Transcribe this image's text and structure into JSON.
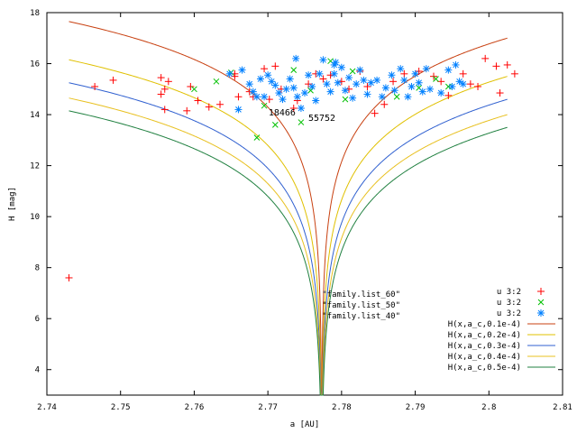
{
  "chart_data": {
    "type": "scatter",
    "xlabel": "a [AU]",
    "ylabel": "H [mag]",
    "xlim": [
      2.74,
      2.81
    ],
    "ylim": [
      3,
      18
    ],
    "xticks": [
      "2.74",
      "2.75",
      "2.76",
      "2.77",
      "2.78",
      "2.79",
      "2.8",
      "2.81"
    ],
    "yticks": [
      "4",
      "6",
      "8",
      "10",
      "12",
      "14",
      "16",
      "18"
    ],
    "grid": false,
    "legend_position": "bottom-right",
    "file_labels": [
      "\"family.list_60\"",
      "\"family.list_50\"",
      "\"family.list_40\""
    ],
    "annotations": [
      {
        "text": "18466",
        "x": 2.7718,
        "y": 14.1
      },
      {
        "text": "55752",
        "x": 2.7772,
        "y": 13.9
      }
    ],
    "series": [
      {
        "name": "u 3:2",
        "marker": "plus",
        "color": "#ff0000",
        "points": [
          [
            2.743,
            7.6
          ],
          [
            2.7465,
            15.1
          ],
          [
            2.749,
            15.35
          ],
          [
            2.7555,
            15.45
          ],
          [
            2.756,
            15.0
          ],
          [
            2.7565,
            15.3
          ],
          [
            2.756,
            14.2
          ],
          [
            2.7555,
            14.8
          ],
          [
            2.759,
            14.15
          ],
          [
            2.7605,
            14.55
          ],
          [
            2.762,
            14.3
          ],
          [
            2.7635,
            14.4
          ],
          [
            2.7655,
            15.5
          ],
          [
            2.766,
            14.7
          ],
          [
            2.7675,
            14.9
          ],
          [
            2.768,
            14.7
          ],
          [
            2.7695,
            15.8
          ],
          [
            2.771,
            15.9
          ],
          [
            2.7702,
            14.6
          ],
          [
            2.7718,
            15.0
          ],
          [
            2.7735,
            14.25
          ],
          [
            2.774,
            14.55
          ],
          [
            2.7755,
            15.2
          ],
          [
            2.7765,
            15.6
          ],
          [
            2.7775,
            15.4
          ],
          [
            2.7785,
            15.55
          ],
          [
            2.78,
            15.3
          ],
          [
            2.781,
            15.0
          ],
          [
            2.7825,
            15.7
          ],
          [
            2.7835,
            15.1
          ],
          [
            2.7845,
            14.05
          ],
          [
            2.7858,
            14.4
          ],
          [
            2.787,
            15.3
          ],
          [
            2.7885,
            15.6
          ],
          [
            2.7905,
            15.7
          ],
          [
            2.7925,
            15.5
          ],
          [
            2.7935,
            15.3
          ],
          [
            2.7945,
            14.75
          ],
          [
            2.7965,
            15.6
          ],
          [
            2.7975,
            15.2
          ],
          [
            2.7985,
            15.1
          ],
          [
            2.7995,
            16.2
          ],
          [
            2.801,
            15.9
          ],
          [
            2.8015,
            14.85
          ],
          [
            2.8025,
            15.95
          ],
          [
            2.8035,
            15.6
          ],
          [
            2.7655,
            15.6
          ],
          [
            2.7595,
            15.1
          ]
        ]
      },
      {
        "name": "u 3:2",
        "marker": "cross",
        "color": "#00c000",
        "points": [
          [
            2.76,
            15.0
          ],
          [
            2.763,
            15.3
          ],
          [
            2.765,
            15.65
          ],
          [
            2.7685,
            13.1
          ],
          [
            2.771,
            13.6
          ],
          [
            2.7735,
            15.75
          ],
          [
            2.7785,
            16.1
          ],
          [
            2.7815,
            15.7
          ],
          [
            2.7875,
            14.7
          ],
          [
            2.7905,
            15.05
          ],
          [
            2.7928,
            15.4
          ],
          [
            2.7945,
            15.1
          ],
          [
            2.7745,
            13.7
          ],
          [
            2.7758,
            14.95
          ],
          [
            2.7805,
            14.6
          ],
          [
            2.7695,
            14.35
          ]
        ]
      },
      {
        "name": "u 3:2",
        "marker": "star",
        "color": "#0080ff",
        "points": [
          [
            2.7648,
            15.6
          ],
          [
            2.766,
            14.2
          ],
          [
            2.7675,
            15.2
          ],
          [
            2.768,
            14.9
          ],
          [
            2.7685,
            14.7
          ],
          [
            2.769,
            15.4
          ],
          [
            2.77,
            15.55
          ],
          [
            2.7695,
            14.7
          ],
          [
            2.7705,
            15.3
          ],
          [
            2.771,
            15.15
          ],
          [
            2.7715,
            14.85
          ],
          [
            2.772,
            14.6
          ],
          [
            2.7725,
            15.0
          ],
          [
            2.773,
            15.4
          ],
          [
            2.7735,
            15.05
          ],
          [
            2.774,
            14.7
          ],
          [
            2.7745,
            14.25
          ],
          [
            2.775,
            14.85
          ],
          [
            2.7755,
            15.55
          ],
          [
            2.776,
            15.1
          ],
          [
            2.7765,
            14.55
          ],
          [
            2.777,
            15.6
          ],
          [
            2.7775,
            16.15
          ],
          [
            2.778,
            15.2
          ],
          [
            2.7785,
            14.9
          ],
          [
            2.779,
            15.6
          ],
          [
            2.7795,
            15.25
          ],
          [
            2.78,
            15.85
          ],
          [
            2.7805,
            14.95
          ],
          [
            2.781,
            15.45
          ],
          [
            2.7815,
            14.65
          ],
          [
            2.782,
            15.2
          ],
          [
            2.7825,
            15.75
          ],
          [
            2.783,
            15.35
          ],
          [
            2.7835,
            14.8
          ],
          [
            2.784,
            15.25
          ],
          [
            2.7848,
            15.35
          ],
          [
            2.7855,
            14.7
          ],
          [
            2.786,
            15.05
          ],
          [
            2.7868,
            15.55
          ],
          [
            2.7872,
            14.95
          ],
          [
            2.788,
            15.8
          ],
          [
            2.7885,
            15.35
          ],
          [
            2.789,
            14.7
          ],
          [
            2.7895,
            15.1
          ],
          [
            2.79,
            15.6
          ],
          [
            2.7905,
            15.25
          ],
          [
            2.791,
            14.9
          ],
          [
            2.7915,
            15.8
          ],
          [
            2.792,
            15.0
          ],
          [
            2.7935,
            14.85
          ],
          [
            2.7945,
            15.75
          ],
          [
            2.795,
            15.1
          ],
          [
            2.7955,
            15.95
          ],
          [
            2.796,
            15.3
          ],
          [
            2.7965,
            15.2
          ],
          [
            2.7738,
            16.2
          ],
          [
            2.779,
            15.95
          ],
          [
            2.7792,
            16.05
          ],
          [
            2.7665,
            15.75
          ]
        ]
      }
    ],
    "curves": [
      {
        "name": "H(x,a_c,0.1e-4)",
        "color": "#c84010",
        "top_left": 17.65,
        "top_right": 17.0
      },
      {
        "name": "H(x,a_c,0.2e-4)",
        "color": "#e0c000",
        "top_left": 16.15,
        "top_right": 15.5
      },
      {
        "name": "H(x,a_c,0.3e-4)",
        "color": "#3060d0",
        "top_left": 15.25,
        "top_right": 14.6
      },
      {
        "name": "H(x,a_c,0.4e-4)",
        "color": "#e8c020",
        "top_left": 14.65,
        "top_right": 14.0
      },
      {
        "name": "H(x,a_c,0.5e-4)",
        "color": "#208040",
        "top_left": 14.15,
        "top_right": 13.5
      }
    ],
    "curve_center_a": 2.7773,
    "curve_xrange": [
      2.743,
      2.8025
    ]
  }
}
